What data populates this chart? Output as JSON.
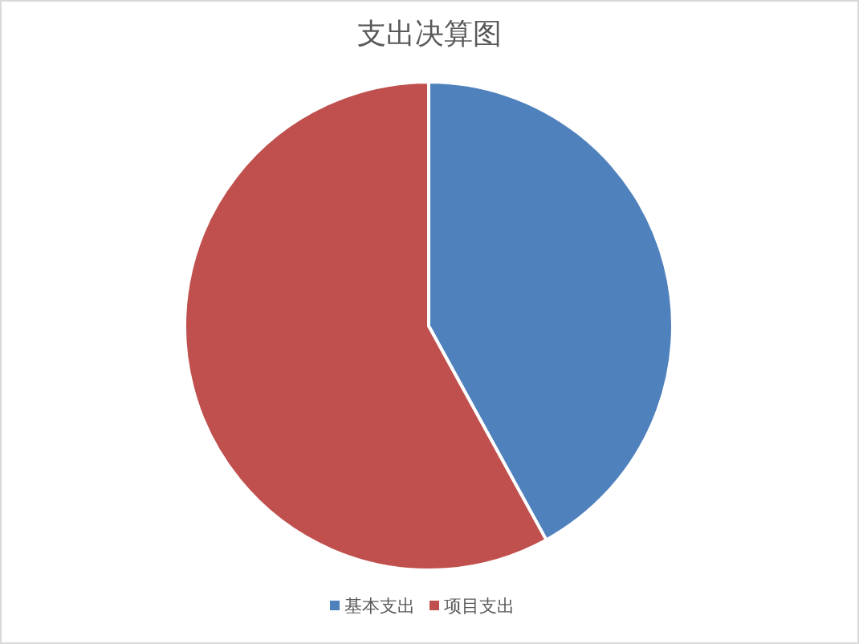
{
  "chart_data": {
    "type": "pie",
    "title": "支出决算图",
    "categories": [
      "基本支出",
      "项目支出"
    ],
    "values": [
      42,
      58
    ],
    "colors": [
      "#4f81bd",
      "#c0504d"
    ],
    "legend": "bottom"
  }
}
